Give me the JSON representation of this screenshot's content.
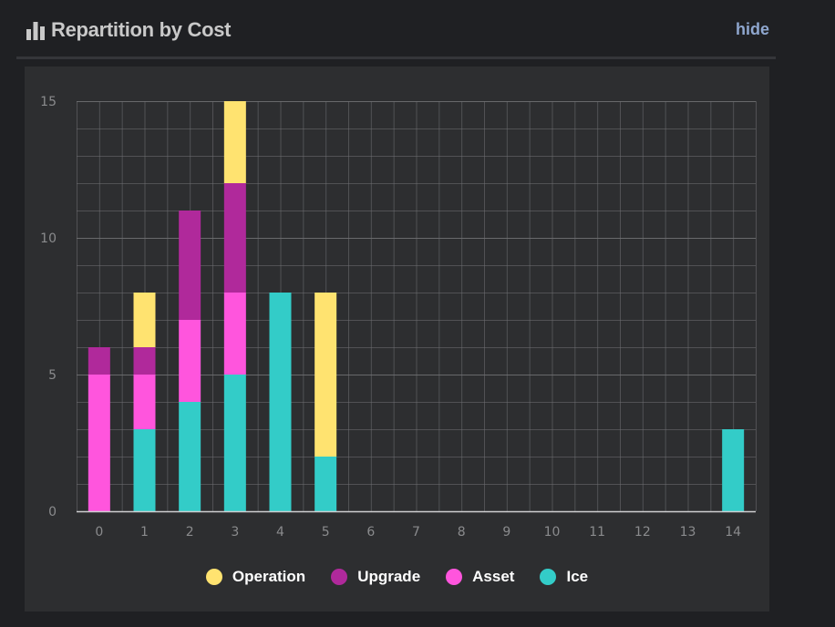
{
  "header": {
    "title": "Repartition by Cost",
    "hide_label": "hide"
  },
  "icons": {
    "title_icon": "bar-chart-icon"
  },
  "colors": {
    "page_bg": "#1f2023",
    "panel_bg": "#2d2e30",
    "grid": "#6f7072",
    "axis": "#cfd0d2",
    "tick_text": "#8a8b8d"
  },
  "chart_data": {
    "type": "bar",
    "stacked": true,
    "categories": [
      "0",
      "1",
      "2",
      "3",
      "4",
      "5",
      "6",
      "7",
      "8",
      "9",
      "10",
      "11",
      "12",
      "13",
      "14"
    ],
    "series": [
      {
        "name": "Ice",
        "color": "#33ccc8",
        "values": [
          0,
          3,
          4,
          5,
          8,
          2,
          0,
          0,
          0,
          0,
          0,
          0,
          0,
          0,
          3
        ]
      },
      {
        "name": "Asset",
        "color": "#ff55dd",
        "values": [
          5,
          2,
          3,
          3,
          0,
          0,
          0,
          0,
          0,
          0,
          0,
          0,
          0,
          0,
          0
        ]
      },
      {
        "name": "Upgrade",
        "color": "#b0299b",
        "values": [
          1,
          1,
          4,
          4,
          0,
          0,
          0,
          0,
          0,
          0,
          0,
          0,
          0,
          0,
          0
        ]
      },
      {
        "name": "Operation",
        "color": "#ffe370",
        "values": [
          0,
          2,
          0,
          3,
          0,
          6,
          0,
          0,
          0,
          0,
          0,
          0,
          0,
          0,
          0
        ]
      }
    ],
    "legend_order": [
      "Operation",
      "Upgrade",
      "Asset",
      "Ice"
    ],
    "yticks": [
      0,
      5,
      10,
      15
    ],
    "ylim": [
      0,
      15
    ],
    "grid": true,
    "legend_position": "bottom"
  }
}
